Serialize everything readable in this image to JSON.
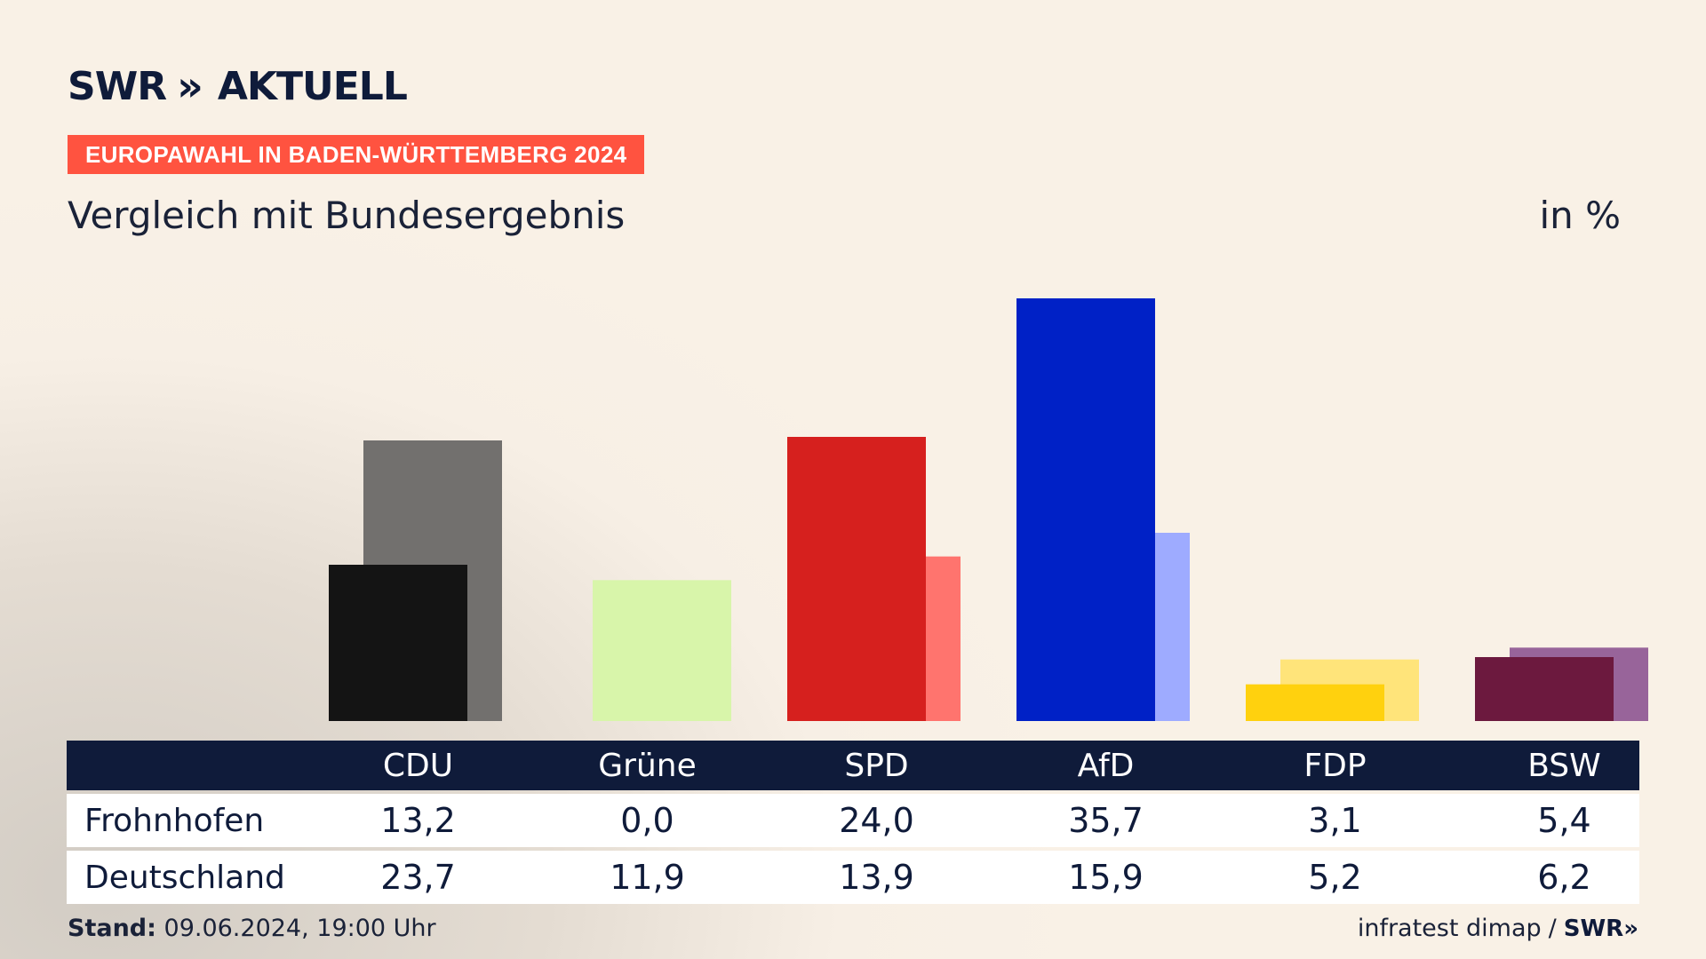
{
  "header": {
    "logo_text": "SWR",
    "logo_chevrons": "»",
    "logo_suffix": "AKTUELL",
    "badge": "EUROPAWAHL IN BADEN-WÜRTTEMBERG 2024",
    "subtitle": "Vergleich mit Bundesergebnis",
    "unit": "in %"
  },
  "table": {
    "rows": [
      {
        "label": "Frohnhofen"
      },
      {
        "label": "Deutschland"
      }
    ]
  },
  "footer": {
    "stand_label": "Stand:",
    "stand_value": "09.06.2024, 19:00 Uhr",
    "source": "infratest dimap",
    "separator": "/",
    "brand": "SWR»"
  },
  "chart_data": {
    "type": "bar",
    "categories": [
      "CDU",
      "Grüne",
      "SPD",
      "AfD",
      "FDP",
      "BSW"
    ],
    "series": [
      {
        "name": "Frohnhofen",
        "values": [
          13.2,
          0.0,
          24.0,
          35.7,
          3.1,
          5.4
        ]
      },
      {
        "name": "Deutschland",
        "values": [
          23.7,
          11.9,
          13.9,
          15.9,
          5.2,
          6.2
        ]
      }
    ],
    "value_labels": [
      [
        "13,2",
        "0,0",
        "24,0",
        "35,7",
        "3,1",
        "5,4"
      ],
      [
        "23,7",
        "11,9",
        "13,9",
        "15,9",
        "5,2",
        "6,2"
      ]
    ],
    "colors_primary": [
      "#141414",
      "#b4e655",
      "#d6201e",
      "#0021c6",
      "#ffd10e",
      "#6c193e"
    ],
    "colors_secondary": [
      "#72706e",
      "#d8f5aa",
      "#ff746e",
      "#9eabff",
      "#ffe47a",
      "#98649a"
    ],
    "ylim": [
      0,
      36
    ],
    "legend": "table-below"
  }
}
